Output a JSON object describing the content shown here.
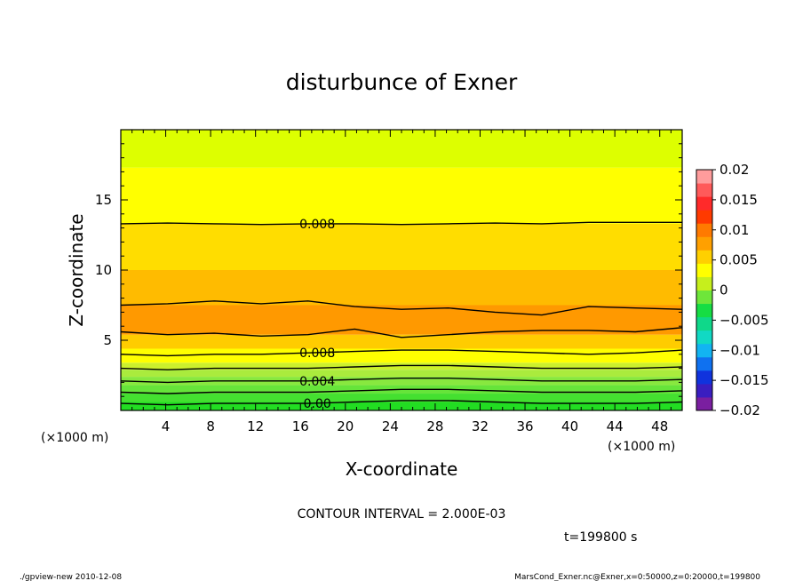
{
  "chart_data": {
    "type": "heatmap",
    "title": "disturbunce of Exner",
    "xlabel": "X-coordinate",
    "ylabel": "Z-coordinate",
    "x_unit_label": "(×1000 m)",
    "y_unit_label": "(×1000 m)",
    "xlim": [
      0,
      50
    ],
    "ylim": [
      0,
      20
    ],
    "x_ticks": [
      "4",
      "8",
      "12",
      "16",
      "20",
      "24",
      "28",
      "32",
      "36",
      "40",
      "44",
      "48"
    ],
    "y_ticks": [
      "5",
      "10",
      "15"
    ],
    "colorbar": {
      "ticks": [
        "0.02",
        "0.015",
        "0.01",
        "0.005",
        "0",
        "−0.005",
        "−0.01",
        "−0.015",
        "−0.02"
      ],
      "range": [
        -0.02,
        0.02
      ]
    },
    "contour_labels": [
      "0.008",
      "0.008",
      "0.004",
      "0.00"
    ],
    "contour_interval_text": "CONTOUR INTERVAL = 2.000E-03",
    "time_text": "t=199800 s",
    "bands": [
      {
        "z_bottom": 0.0,
        "z_top": 0.6,
        "color": "#22dd22"
      },
      {
        "z_bottom": 0.6,
        "z_top": 1.2,
        "color": "#44e030"
      },
      {
        "z_bottom": 1.2,
        "z_top": 1.8,
        "color": "#66e43a"
      },
      {
        "z_bottom": 1.8,
        "z_top": 2.4,
        "color": "#88e83f"
      },
      {
        "z_bottom": 2.4,
        "z_top": 2.9,
        "color": "#aaeb3d"
      },
      {
        "z_bottom": 2.9,
        "z_top": 3.4,
        "color": "#ccf02c"
      },
      {
        "z_bottom": 3.4,
        "z_top": 4.4,
        "color": "#ffff00"
      },
      {
        "z_bottom": 4.4,
        "z_top": 5.4,
        "color": "#ffcc00"
      },
      {
        "z_bottom": 5.4,
        "z_top": 7.5,
        "color": "#ff9900"
      },
      {
        "z_bottom": 7.5,
        "z_top": 10.0,
        "color": "#ffbb00"
      },
      {
        "z_bottom": 10.0,
        "z_top": 13.3,
        "color": "#ffdd00"
      },
      {
        "z_bottom": 13.3,
        "z_top": 17.3,
        "color": "#ffff00"
      },
      {
        "z_bottom": 17.3,
        "z_top": 20.0,
        "color": "#ddff00"
      }
    ],
    "contours": [
      {
        "label": "0.008",
        "z": [
          13.3,
          13.35,
          13.3,
          13.25,
          13.3,
          13.3,
          13.25,
          13.3,
          13.35,
          13.3,
          13.4,
          13.4,
          13.4
        ]
      },
      {
        "label": "",
        "z": [
          7.5,
          7.6,
          7.8,
          7.6,
          7.8,
          7.4,
          7.2,
          7.3,
          7.0,
          6.8,
          7.4,
          7.3,
          7.2
        ]
      },
      {
        "label": "",
        "z": [
          5.6,
          5.4,
          5.5,
          5.3,
          5.4,
          5.8,
          5.2,
          5.4,
          5.6,
          5.7,
          5.7,
          5.6,
          5.9
        ]
      },
      {
        "label": "0.008",
        "z": [
          4.0,
          3.9,
          4.0,
          4.0,
          4.1,
          4.2,
          4.3,
          4.3,
          4.2,
          4.1,
          4.0,
          4.1,
          4.3
        ]
      },
      {
        "label": "",
        "z": [
          3.0,
          2.9,
          3.0,
          3.0,
          3.0,
          3.1,
          3.2,
          3.2,
          3.1,
          3.0,
          3.0,
          3.0,
          3.1
        ]
      },
      {
        "label": "0.004",
        "z": [
          2.1,
          2.0,
          2.1,
          2.1,
          2.1,
          2.2,
          2.3,
          2.3,
          2.2,
          2.1,
          2.1,
          2.1,
          2.2
        ]
      },
      {
        "label": "",
        "z": [
          1.3,
          1.2,
          1.3,
          1.3,
          1.3,
          1.4,
          1.5,
          1.5,
          1.4,
          1.3,
          1.3,
          1.3,
          1.4
        ]
      },
      {
        "label": "0.00",
        "z": [
          0.5,
          0.4,
          0.5,
          0.5,
          0.5,
          0.6,
          0.7,
          0.7,
          0.6,
          0.5,
          0.5,
          0.5,
          0.6
        ]
      }
    ]
  },
  "footer": {
    "left": "./gpview-new   2010-12-08",
    "right": "MarsCond_Exner.nc@Exner,x=0:50000,z=0:20000,t=199800"
  },
  "colors": {
    "colorbar": [
      "#7a1fa0",
      "#3a1ec0",
      "#1033dd",
      "#0f71f0",
      "#12b4f2",
      "#11d9c4",
      "#0fd88a",
      "#16dd44",
      "#6ee63a",
      "#c6ef1c",
      "#ffff00",
      "#ffd000",
      "#ffa000",
      "#ff7a00",
      "#ff3a00",
      "#ff2a2a",
      "#ff5a5a",
      "#ff9c9c"
    ]
  }
}
